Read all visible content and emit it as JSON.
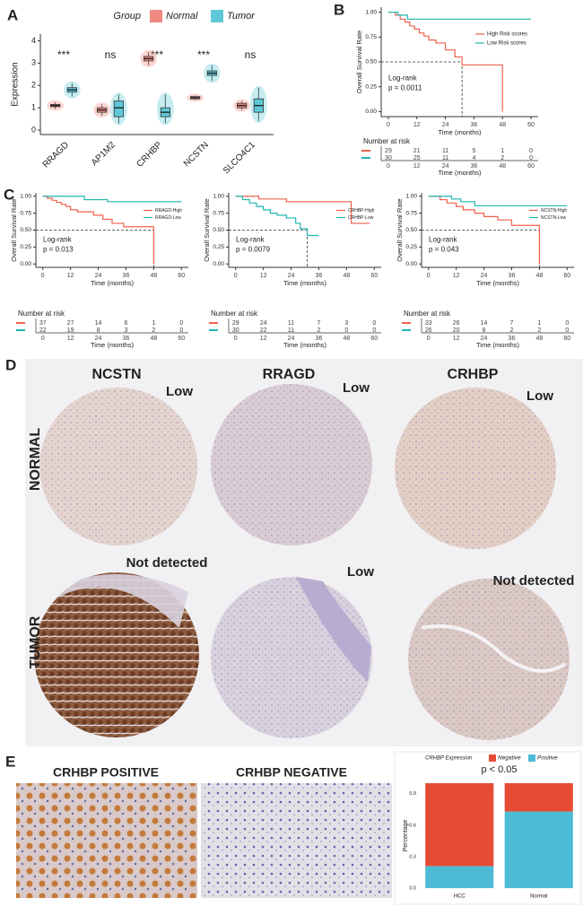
{
  "figure": {
    "panel_labels": [
      "A",
      "B",
      "C",
      "D",
      "E"
    ],
    "ihc": {
      "columns": [
        "NCSTN",
        "RRAGD",
        "CRHBP"
      ],
      "rows": [
        "NORMAL",
        "TUMOR"
      ],
      "levels": [
        [
          "Low",
          "Low",
          "Low"
        ],
        [
          "Not detected",
          "Low",
          "Not detected"
        ]
      ]
    },
    "stain_panels": [
      "CRHBP POSITIVE",
      "CRHBP NEGATIVE"
    ]
  },
  "chart_data": [
    {
      "type": "box",
      "y_label": "Expression",
      "legend_title": "Group",
      "categories": [
        "RRAGD",
        "AP1M2",
        "CRHBP",
        "NCSTN",
        "SLCO4C1"
      ],
      "significance": [
        "***",
        "ns",
        "***",
        "***",
        "ns"
      ],
      "ylim": [
        -0.2,
        4.3
      ],
      "yticks": [
        0,
        1,
        2,
        3,
        4
      ],
      "series": [
        {
          "name": "Normal",
          "color": "#f08a80",
          "min": [
            0.95,
            0.65,
            2.9,
            1.35,
            0.9
          ],
          "q1": [
            1.05,
            0.8,
            3.1,
            1.4,
            1.0
          ],
          "median": [
            1.1,
            0.9,
            3.2,
            1.45,
            1.1
          ],
          "q3": [
            1.15,
            1.0,
            3.3,
            1.5,
            1.2
          ],
          "max": [
            1.25,
            1.15,
            3.5,
            1.55,
            1.3
          ]
        },
        {
          "name": "Tumor",
          "color": "#5ec8d8",
          "min": [
            1.5,
            0.3,
            0.3,
            2.2,
            0.4
          ],
          "q1": [
            1.7,
            0.6,
            0.6,
            2.45,
            0.8
          ],
          "median": [
            1.8,
            1.0,
            0.8,
            2.55,
            1.1
          ],
          "q3": [
            1.9,
            1.3,
            1.0,
            2.65,
            1.4
          ],
          "max": [
            2.1,
            1.6,
            1.6,
            2.9,
            1.9
          ]
        }
      ]
    },
    {
      "type": "km",
      "x_label": "Time (months)",
      "y_label": "Overall Survival Rate",
      "xlim": [
        -3,
        63
      ],
      "ylim": [
        -0.05,
        1.05
      ],
      "xticks": [
        0,
        12,
        24,
        36,
        48,
        60
      ],
      "yticks": [
        {
          "value": 0,
          "label": "0.00"
        },
        {
          "value": 0.25,
          "label": "0.25"
        },
        {
          "value": 0.5,
          "label": "0.50"
        },
        {
          "value": 0.75,
          "label": "0.75"
        },
        {
          "value": 1,
          "label": "1.00"
        }
      ],
      "legend": "upper right",
      "annotation": [
        "Log-rank",
        "p = 0.0011"
      ],
      "risk_title": "Number at risk",
      "series": [
        {
          "name": "High Risk scores",
          "color": "#f0604c",
          "x": [
            0,
            3,
            5,
            7,
            9,
            11,
            13,
            15,
            17,
            20,
            24,
            28,
            31,
            48,
            48
          ],
          "values": [
            1,
            0.97,
            0.93,
            0.9,
            0.86,
            0.83,
            0.79,
            0.76,
            0.72,
            0.69,
            0.62,
            0.55,
            0.47,
            0.47,
            0
          ],
          "at_risk": [
            29,
            21,
            11,
            5,
            1,
            0
          ]
        },
        {
          "name": "Low Risk scores",
          "color": "#1fb5b0",
          "x": [
            0,
            4,
            8,
            60
          ],
          "values": [
            1,
            0.97,
            0.93,
            0.93
          ],
          "at_risk": [
            30,
            25,
            11,
            4,
            2,
            0
          ]
        }
      ]
    },
    {
      "type": "km",
      "x_label": "Time (months)",
      "y_label": "Overall Survival Rate",
      "xlim": [
        -3,
        63
      ],
      "ylim": [
        -0.05,
        1.05
      ],
      "xticks": [
        0,
        12,
        24,
        36,
        48,
        60
      ],
      "yticks": [
        {
          "value": 0,
          "label": "0.00"
        },
        {
          "value": 0.25,
          "label": "0.25"
        },
        {
          "value": 0.5,
          "label": "0.50"
        },
        {
          "value": 0.75,
          "label": "0.75"
        },
        {
          "value": 1,
          "label": "1.00"
        }
      ],
      "legend": "right",
      "annotation": [
        "Log-rank",
        "p = 0.013"
      ],
      "risk_title": "Number at risk",
      "series": [
        {
          "name": "RRAGD-High",
          "color": "#f0604c",
          "x": [
            0,
            2,
            4,
            6,
            8,
            10,
            12,
            15,
            22,
            26,
            30,
            35,
            48,
            48
          ],
          "values": [
            1,
            0.97,
            0.94,
            0.91,
            0.88,
            0.85,
            0.8,
            0.77,
            0.72,
            0.66,
            0.6,
            0.55,
            0.55,
            0
          ],
          "at_risk": [
            37,
            27,
            14,
            6,
            1,
            0
          ]
        },
        {
          "name": "RRAGD-Low",
          "color": "#1fb5b0",
          "x": [
            0,
            18,
            28,
            60
          ],
          "values": [
            1,
            0.95,
            0.92,
            0.92
          ],
          "at_risk": [
            22,
            19,
            8,
            3,
            2,
            0
          ]
        }
      ]
    },
    {
      "type": "km",
      "x_label": "Time (months)",
      "y_label": "Overall Survival Rate",
      "xlim": [
        -3,
        63
      ],
      "ylim": [
        -0.05,
        1.05
      ],
      "xticks": [
        0,
        12,
        24,
        36,
        48,
        60
      ],
      "yticks": [
        {
          "value": 0,
          "label": "0.00"
        },
        {
          "value": 0.25,
          "label": "0.25"
        },
        {
          "value": 0.5,
          "label": "0.50"
        },
        {
          "value": 0.75,
          "label": "0.75"
        },
        {
          "value": 1,
          "label": "1.00"
        }
      ],
      "legend": "right",
      "annotation": [
        "Log-rank",
        "p = 0.0079"
      ],
      "risk_title": "Number at risk",
      "series": [
        {
          "name": "CRHBP-High",
          "color": "#f0604c",
          "x": [
            0,
            10,
            22,
            50,
            58
          ],
          "values": [
            1,
            0.96,
            0.92,
            0.6,
            0.6
          ],
          "at_risk": [
            29,
            24,
            11,
            7,
            3,
            0
          ]
        },
        {
          "name": "CRHBP-Low",
          "color": "#1fb5b0",
          "x": [
            0,
            3,
            6,
            9,
            12,
            15,
            18,
            22,
            26,
            28,
            31,
            36
          ],
          "values": [
            1,
            0.95,
            0.9,
            0.85,
            0.8,
            0.75,
            0.72,
            0.68,
            0.6,
            0.52,
            0.42,
            0.42
          ],
          "at_risk": [
            30,
            22,
            11,
            2,
            0,
            0
          ]
        }
      ]
    },
    {
      "type": "km",
      "x_label": "Time (months)",
      "y_label": "Overall Survival Rate",
      "xlim": [
        -3,
        63
      ],
      "ylim": [
        -0.05,
        1.05
      ],
      "xticks": [
        0,
        12,
        24,
        36,
        48,
        60
      ],
      "yticks": [
        {
          "value": 0,
          "label": "0.00"
        },
        {
          "value": 0.25,
          "label": "0.25"
        },
        {
          "value": 0.5,
          "label": "0.50"
        },
        {
          "value": 0.75,
          "label": "0.75"
        },
        {
          "value": 1,
          "label": "1.00"
        }
      ],
      "legend": "right",
      "annotation": [
        "Log-rank",
        "p = 0.043"
      ],
      "risk_title": "Number at risk",
      "series": [
        {
          "name": "NCSTN-High",
          "color": "#f0604c",
          "x": [
            0,
            5,
            8,
            12,
            15,
            20,
            24,
            30,
            36,
            48,
            48
          ],
          "values": [
            1,
            0.95,
            0.9,
            0.85,
            0.8,
            0.75,
            0.7,
            0.65,
            0.57,
            0.57,
            0
          ],
          "at_risk": [
            33,
            26,
            14,
            7,
            1,
            0
          ]
        },
        {
          "name": "NCSTN-Low",
          "color": "#1fb5b0",
          "x": [
            0,
            10,
            14,
            20,
            60
          ],
          "values": [
            1,
            0.96,
            0.92,
            0.86,
            0.86
          ],
          "at_risk": [
            26,
            20,
            8,
            2,
            2,
            0
          ]
        }
      ]
    },
    {
      "type": "stacked_bar",
      "title": "p < 0.05",
      "y_label": "Percentage",
      "legend_title": "CRHBP Expression",
      "categories": [
        "HCC",
        "Normal"
      ],
      "ylim": [
        0,
        1
      ],
      "yticks": [
        {
          "value": 0,
          "label": "0.0"
        },
        {
          "value": 0.3,
          "label": "0.3"
        },
        {
          "value": 0.6,
          "label": "0.6"
        },
        {
          "value": 0.9,
          "label": "0.9"
        }
      ],
      "series": [
        {
          "name": "Positive",
          "color": "#4dbbd5",
          "values": [
            0.21,
            0.73
          ]
        },
        {
          "name": "Negative",
          "color": "#e64b35",
          "values": [
            0.79,
            0.27
          ]
        }
      ]
    }
  ]
}
